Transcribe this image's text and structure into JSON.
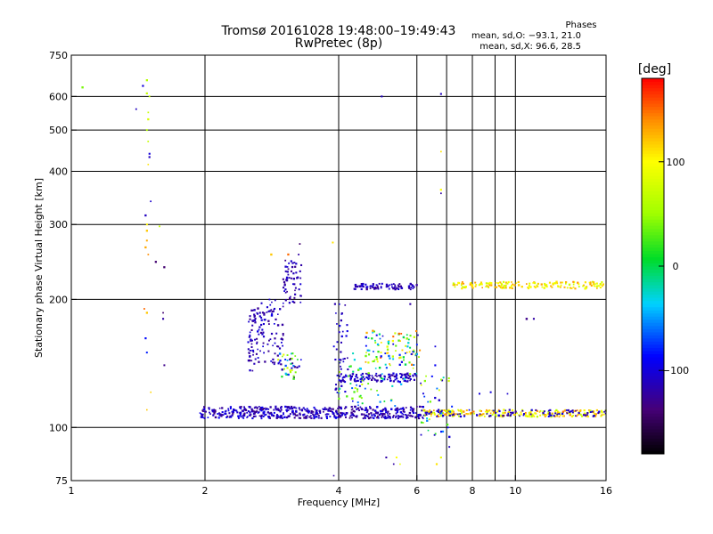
{
  "header": {
    "title_line1": "Tromsø 20161028 19:48:00–19:49:43",
    "title_line2": "RwPretec (8p)",
    "stats_title": "Phases",
    "stats_o": "mean, sd,O: −93.1, 21.0",
    "stats_x": "mean, sd,X:  96.6, 28.5"
  },
  "colorbar": {
    "title": "[deg]",
    "tick_labels": [
      "100",
      "0",
      "−100"
    ],
    "tick_values": [
      100,
      0,
      -100
    ],
    "range": [
      -180,
      180
    ],
    "colormap": "rainbow (black-purple-blue-cyan-green-yellow-red)"
  },
  "chart_data": {
    "type": "scatter",
    "xlabel": "Frequency [MHz]",
    "ylabel": "Stationary phase Virtual Height [km]",
    "x_scale": "log",
    "y_scale": "log",
    "xlim": [
      1,
      16
    ],
    "ylim": [
      75,
      750
    ],
    "x_ticks": [
      1,
      2,
      4,
      6,
      8,
      10,
      16
    ],
    "x_tick_labels": [
      "1",
      "2",
      "4",
      "6",
      "8",
      "10",
      "16"
    ],
    "x_minor": [
      7,
      9
    ],
    "y_ticks": [
      75,
      100,
      200,
      300,
      400,
      500,
      600,
      750
    ],
    "y_tick_labels": [
      "75",
      "100",
      "200",
      "300",
      "400",
      "500",
      "600",
      "750"
    ],
    "grid": true,
    "color_variable": "phase (deg)",
    "series": [
      {
        "points": [
          [
            1.06,
            630,
            40
          ],
          [
            1.4,
            560,
            -110
          ],
          [
            1.45,
            635,
            -100
          ],
          [
            1.48,
            655,
            60
          ],
          [
            1.48,
            610,
            70
          ],
          [
            1.49,
            550,
            70
          ],
          [
            1.49,
            530,
            80
          ],
          [
            1.5,
            600,
            65
          ],
          [
            1.48,
            500,
            60
          ],
          [
            1.49,
            470,
            70
          ],
          [
            1.5,
            440,
            -100
          ],
          [
            1.5,
            432,
            -110
          ],
          [
            1.49,
            415,
            110
          ],
          [
            1.51,
            340,
            -105
          ],
          [
            1.47,
            315,
            -110
          ],
          [
            1.48,
            300,
            105
          ],
          [
            1.48,
            290,
            120
          ],
          [
            1.48,
            275,
            130
          ],
          [
            1.47,
            265,
            130
          ],
          [
            1.49,
            255,
            140
          ],
          [
            1.58,
            297,
            70
          ],
          [
            1.55,
            245,
            -140
          ],
          [
            1.62,
            238,
            -140
          ],
          [
            1.46,
            190,
            150
          ],
          [
            1.48,
            186,
            120
          ],
          [
            1.61,
            186,
            -140
          ],
          [
            1.61,
            180,
            -120
          ],
          [
            1.47,
            162,
            -85
          ],
          [
            1.48,
            150,
            -80
          ],
          [
            1.62,
            140,
            -130
          ],
          [
            1.51,
            121,
            115
          ],
          [
            1.48,
            110,
            120
          ],
          [
            5.0,
            600,
            -110
          ],
          [
            6.8,
            608,
            -110
          ],
          [
            6.8,
            445,
            110
          ],
          [
            6.8,
            362,
            100
          ],
          [
            6.8,
            355,
            -120
          ],
          [
            3.88,
            272,
            110
          ],
          [
            2.82,
            255,
            120
          ],
          [
            3.08,
            255,
            150
          ],
          [
            3.27,
            270,
            -140
          ],
          [
            3.25,
            255,
            -120
          ],
          [
            5.8,
            195,
            -120
          ],
          [
            5.9,
            152,
            80
          ],
          [
            5.7,
            150,
            120
          ],
          [
            6.6,
            155,
            -100
          ],
          [
            6.6,
            140,
            -90
          ],
          [
            5.4,
            85,
            100
          ],
          [
            5.5,
            82,
            90
          ],
          [
            5.32,
            82,
            -120
          ],
          [
            6.8,
            85,
            90
          ],
          [
            7.1,
            90,
            -110
          ],
          [
            6.65,
            82,
            110
          ],
          [
            7.1,
            95,
            -100
          ],
          [
            3.9,
            77,
            -120
          ],
          [
            5.12,
            85,
            -120
          ],
          [
            11.0,
            180,
            -120
          ],
          [
            10.6,
            180,
            -130
          ],
          [
            8.3,
            120,
            -100
          ],
          [
            8.8,
            121,
            -100
          ],
          [
            9.6,
            120,
            -105
          ]
        ]
      }
    ],
    "clusters": [
      {
        "f": [
          1.95,
          6.2
        ],
        "h": [
          105,
          112
        ],
        "ph": [
          -135,
          -90
        ],
        "n": 520
      },
      {
        "f": [
          6.2,
          16
        ],
        "h": [
          106,
          110
        ],
        "ph": [
          60,
          150
        ],
        "n": 240
      },
      {
        "f": [
          6.2,
          16
        ],
        "h": [
          106,
          110
        ],
        "ph": [
          -130,
          -90
        ],
        "n": 90
      },
      {
        "f": [
          4.3,
          6.0
        ],
        "h": [
          211,
          218
        ],
        "ph": [
          -130,
          -95
        ],
        "n": 80
      },
      {
        "f": [
          7.2,
          15.8
        ],
        "h": [
          212,
          220
        ],
        "ph": [
          70,
          140
        ],
        "n": 170
      },
      {
        "f": [
          2.5,
          2.6
        ],
        "h": [
          135,
          190
        ],
        "ph": [
          -130,
          -100
        ],
        "n": 45
      },
      {
        "f": [
          2.6,
          3.0
        ],
        "h": [
          140,
          200
        ],
        "ph": [
          -130,
          -95
        ],
        "n": 90
      },
      {
        "f": [
          3.0,
          3.3
        ],
        "h": [
          195,
          250
        ],
        "ph": [
          -130,
          -100
        ],
        "n": 60
      },
      {
        "f": [
          2.9,
          3.3
        ],
        "h": [
          130,
          150
        ],
        "ph": [
          -140,
          100
        ],
        "n": 40
      },
      {
        "f": [
          4.0,
          6.0
        ],
        "h": [
          128,
          134
        ],
        "ph": [
          -125,
          -95
        ],
        "n": 140
      },
      {
        "f": [
          4.6,
          6.1
        ],
        "h": [
          140,
          170
        ],
        "ph": [
          -110,
          160
        ],
        "n": 90
      },
      {
        "f": [
          4.0,
          6.0
        ],
        "h": [
          112,
          150
        ],
        "ph": [
          -100,
          80
        ],
        "n": 70
      },
      {
        "f": [
          6.1,
          7.2
        ],
        "h": [
          95,
          135
        ],
        "ph": [
          -120,
          100
        ],
        "n": 40
      },
      {
        "f": [
          3.9,
          4.2
        ],
        "h": [
          120,
          200
        ],
        "ph": [
          -120,
          -95
        ],
        "n": 40
      }
    ]
  }
}
